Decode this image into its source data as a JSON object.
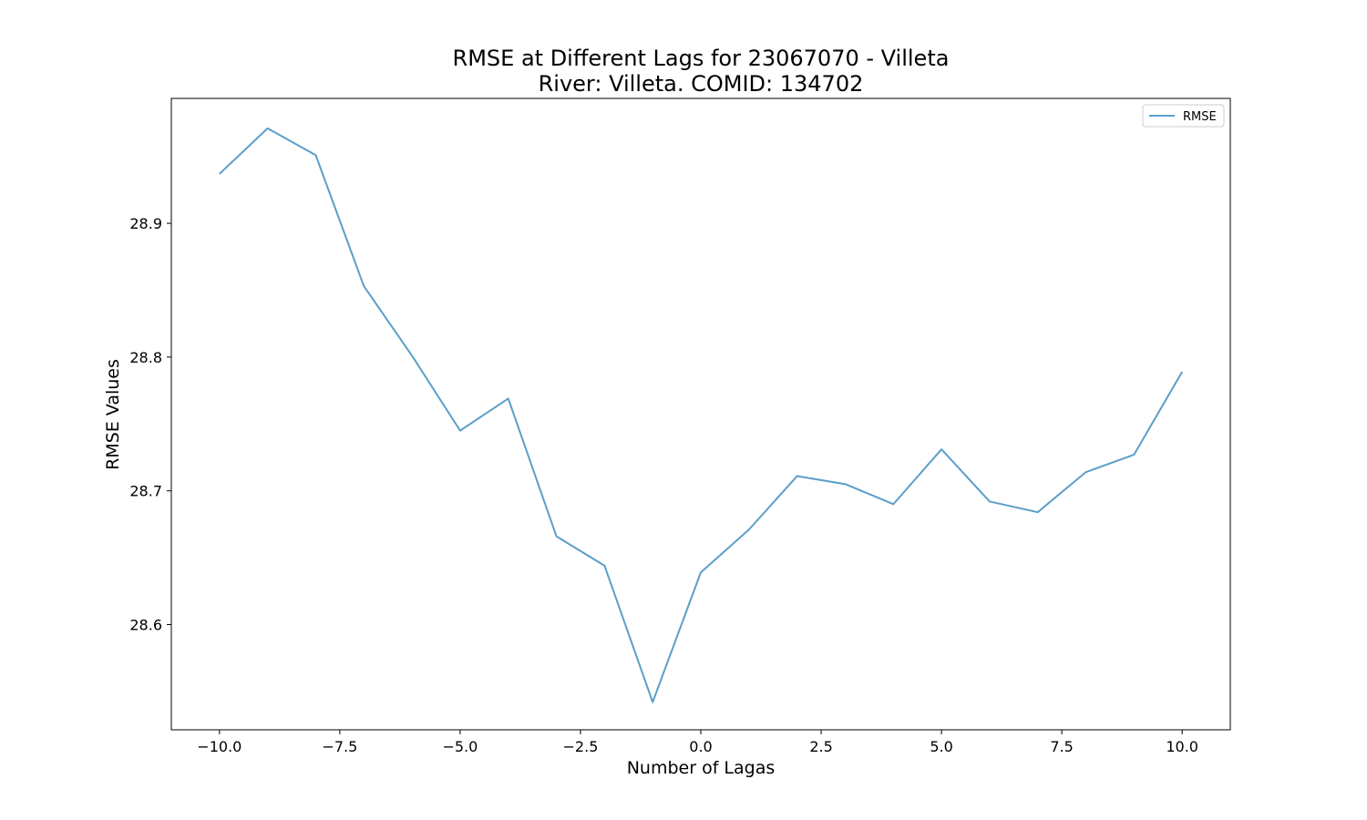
{
  "chart_data": {
    "type": "line",
    "title": "RMSE at Different Lags for 23067070 - Villeta",
    "subtitle": "River: Villeta. COMID: 134702",
    "xlabel": "Number of Lagas",
    "ylabel": "RMSE Values",
    "xlim": [
      -11.0,
      11.0
    ],
    "ylim": [
      28.5213,
      28.9934
    ],
    "x_ticks": [
      -10.0,
      -7.5,
      -5.0,
      -2.5,
      0.0,
      2.5,
      5.0,
      7.5,
      10.0
    ],
    "x_tick_labels": [
      "−10.0",
      "−7.5",
      "−5.0",
      "−2.5",
      "0.0",
      "2.5",
      "5.0",
      "7.5",
      "10.0"
    ],
    "y_ticks": [
      28.6,
      28.7,
      28.8,
      28.9
    ],
    "y_tick_labels": [
      "28.6",
      "28.7",
      "28.8",
      "28.9"
    ],
    "grid": false,
    "legend_position": "top-right",
    "series": [
      {
        "name": "RMSE",
        "color": "#5b9ec9",
        "x": [
          -10,
          -9,
          -8,
          -7,
          -6,
          -5,
          -4,
          -3,
          -2,
          -1,
          0,
          1,
          2,
          3,
          4,
          5,
          6,
          7,
          8,
          9,
          10
        ],
        "values": [
          28.937,
          28.971,
          28.951,
          28.853,
          28.801,
          28.745,
          28.769,
          28.666,
          28.644,
          28.542,
          28.639,
          28.671,
          28.711,
          28.705,
          28.69,
          28.731,
          28.692,
          28.684,
          28.714,
          28.727,
          28.789
        ]
      }
    ]
  }
}
